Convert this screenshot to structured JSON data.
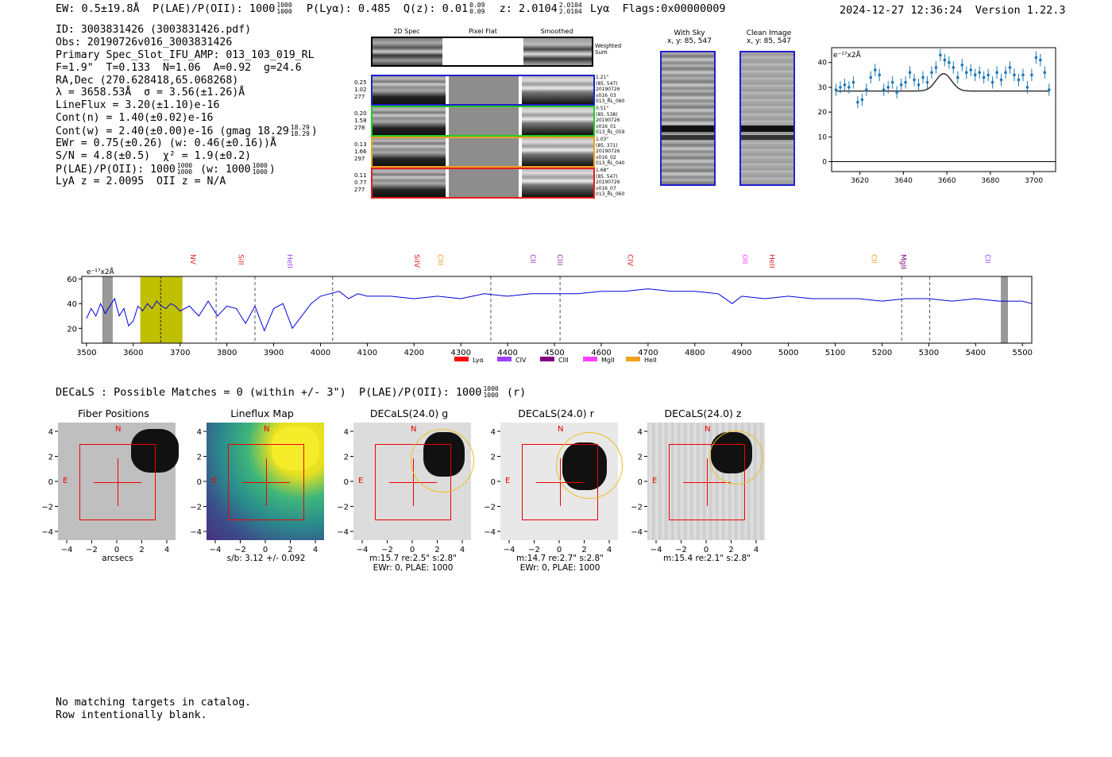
{
  "header": {
    "ew": "EW: 0.5±19.8Å",
    "plae_label": "P(LAE)/P(OII): 1000",
    "plae_sup": "1000",
    "plae_sub": "1000",
    "plya": "P(Lyα): 0.485",
    "q_label": "Q(z): 0.01",
    "q_sup": "0.09",
    "q_sub": "0.09",
    "z_label": "z: 2.0104",
    "z_sup": "2.0104",
    "z_sub": "2.0104",
    "z_line": "Lyα",
    "flags": "Flags:0x00000009",
    "datetime": "2024-12-27 12:36:24",
    "version": "Version 1.22.3"
  },
  "info": {
    "id": "ID: 3003831426 (3003831426.pdf)",
    "obs": "Obs: 20190726v016_3003831426",
    "primary": "Primary Spec_Slot_IFU_AMP: 013_103_019_RL",
    "fit": "F=1.9\"  T=0.133  N=1.06  A=0.92  g=24.6",
    "radec": "RA,Dec (270.628418,65.068268)",
    "lambda": "λ = 3658.53Å  σ = 3.56(±1.26)Å",
    "lineflux": "LineFlux = 3.20(±1.10)e-16",
    "contn": "Cont(n) = 1.40(±0.02)e-16",
    "contw": "Cont(w) = 2.40(±0.00)e-16 (gmag 18.29",
    "contw_sup": "18.29",
    "contw_sub": "18.29",
    "contw_end": ")",
    "ewr": "EWr = 0.75(±0.26) (w: 0.46(±0.16))Å",
    "sn": "S/N = 4.8(±0.5)  χ² = 1.9(±0.2)",
    "plae": "P(LAE)/P(OII): 1000",
    "plae_sup": "1000",
    "plae_sub": "1000",
    "plae_w": "(w: 1000",
    "plae_w_sup": "1000",
    "plae_w_sub": "1000",
    "plae_w_end": ")",
    "lyaz": "LyA z = 2.0095  OII z = N/A"
  },
  "stamps": {
    "col_titles": [
      "2D Spec",
      "Pixel Flat",
      "Smoothed"
    ],
    "weighted_sum": "Weighted\nSum",
    "rows": [
      {
        "color": "#1f1fd0",
        "left": [
          "0.25",
          "1.02",
          "277"
        ],
        "right": [
          "1.21\"",
          "(85, 547)",
          "20190726",
          "v016_03",
          "013_RL_060"
        ]
      },
      {
        "color": "#22cc22",
        "left": [
          "0.20",
          "1.58",
          "278"
        ],
        "right": [
          "0.51\"",
          "(85, 538)",
          "20190726",
          "v016_01",
          "013_RL_059"
        ]
      },
      {
        "color": "#f0a020",
        "left": [
          "0.13",
          "1.66",
          "297"
        ],
        "right": [
          "1.03\"",
          "(85, 371)",
          "20190726",
          "v016_02",
          "013_RL_040"
        ]
      },
      {
        "color": "#e02020",
        "left": [
          "0.11",
          "0.77",
          "277"
        ],
        "right": [
          "1.68\"",
          "(85, 547)",
          "20190726",
          "v016_07",
          "013_RL_060"
        ]
      }
    ]
  },
  "sky_panels": {
    "with_sky_title": "With Sky",
    "with_sky_coords": "x, y: 85, 547",
    "clean_title": "Clean Image",
    "clean_coords": "x, y: 85, 547"
  },
  "chart_data": [
    {
      "type": "scatter",
      "title": "",
      "units_label": "e⁻¹⁷x2Å",
      "xlabel": "",
      "ylabel": "",
      "xlim": [
        3607,
        3710
      ],
      "ylim": [
        -4,
        46
      ],
      "xticks": [
        3620,
        3640,
        3660,
        3680,
        3700
      ],
      "yticks": [
        0,
        10,
        20,
        30,
        40
      ],
      "points": [
        {
          "x": 3609,
          "y": 29,
          "err": 2.5
        },
        {
          "x": 3611,
          "y": 30,
          "err": 2.5
        },
        {
          "x": 3613,
          "y": 31,
          "err": 2.5
        },
        {
          "x": 3615,
          "y": 30,
          "err": 2.5
        },
        {
          "x": 3617,
          "y": 32,
          "err": 2.5
        },
        {
          "x": 3619,
          "y": 24,
          "err": 2.5
        },
        {
          "x": 3621,
          "y": 25,
          "err": 2.5
        },
        {
          "x": 3623,
          "y": 29,
          "err": 2.5
        },
        {
          "x": 3625,
          "y": 34,
          "err": 2.5
        },
        {
          "x": 3627,
          "y": 37,
          "err": 2.5
        },
        {
          "x": 3629,
          "y": 35,
          "err": 2.5
        },
        {
          "x": 3631,
          "y": 29,
          "err": 2.5
        },
        {
          "x": 3633,
          "y": 30,
          "err": 2.5
        },
        {
          "x": 3635,
          "y": 32,
          "err": 2.5
        },
        {
          "x": 3637,
          "y": 28,
          "err": 2.5
        },
        {
          "x": 3639,
          "y": 31,
          "err": 2.5
        },
        {
          "x": 3641,
          "y": 32,
          "err": 2.5
        },
        {
          "x": 3643,
          "y": 36,
          "err": 2.5
        },
        {
          "x": 3645,
          "y": 33,
          "err": 2.5
        },
        {
          "x": 3647,
          "y": 31,
          "err": 2.5
        },
        {
          "x": 3649,
          "y": 34,
          "err": 2.5
        },
        {
          "x": 3651,
          "y": 32,
          "err": 2.5
        },
        {
          "x": 3653,
          "y": 36,
          "err": 2.5
        },
        {
          "x": 3655,
          "y": 38,
          "err": 2.5
        },
        {
          "x": 3657,
          "y": 43,
          "err": 2.5
        },
        {
          "x": 3659,
          "y": 41,
          "err": 2.5
        },
        {
          "x": 3661,
          "y": 40,
          "err": 2.5
        },
        {
          "x": 3663,
          "y": 38,
          "err": 2.5
        },
        {
          "x": 3665,
          "y": 34,
          "err": 2.5
        },
        {
          "x": 3667,
          "y": 39,
          "err": 2.5
        },
        {
          "x": 3669,
          "y": 36,
          "err": 2.5
        },
        {
          "x": 3671,
          "y": 37,
          "err": 2.5
        },
        {
          "x": 3673,
          "y": 35,
          "err": 2.5
        },
        {
          "x": 3675,
          "y": 36,
          "err": 2.5
        },
        {
          "x": 3677,
          "y": 34,
          "err": 2.5
        },
        {
          "x": 3679,
          "y": 35,
          "err": 2.5
        },
        {
          "x": 3681,
          "y": 32,
          "err": 2.5
        },
        {
          "x": 3683,
          "y": 36,
          "err": 2.5
        },
        {
          "x": 3685,
          "y": 33,
          "err": 2.5
        },
        {
          "x": 3687,
          "y": 36,
          "err": 2.5
        },
        {
          "x": 3689,
          "y": 38,
          "err": 2.5
        },
        {
          "x": 3691,
          "y": 35,
          "err": 2.5
        },
        {
          "x": 3693,
          "y": 33,
          "err": 2.5
        },
        {
          "x": 3695,
          "y": 35,
          "err": 2.5
        },
        {
          "x": 3697,
          "y": 30,
          "err": 2.5
        },
        {
          "x": 3699,
          "y": 35,
          "err": 2.5
        },
        {
          "x": 3701,
          "y": 42,
          "err": 2.5
        },
        {
          "x": 3703,
          "y": 41,
          "err": 2.5
        },
        {
          "x": 3705,
          "y": 36,
          "err": 2.5
        },
        {
          "x": 3707,
          "y": 29,
          "err": 2.5
        }
      ],
      "model": {
        "continuum": 28.5,
        "amplitude": 7.0,
        "center": 3658.53,
        "sigma": 3.56
      }
    },
    {
      "type": "line",
      "title": "",
      "units_label": "e⁻¹⁷x2Å",
      "xlim": [
        3490,
        5520
      ],
      "ylim": [
        8,
        62
      ],
      "xticks": [
        3500,
        3600,
        3700,
        3800,
        3900,
        4000,
        4100,
        4200,
        4300,
        4400,
        4500,
        4600,
        4700,
        4800,
        4900,
        5000,
        5100,
        5200,
        5300,
        5400,
        5500
      ],
      "yticks": [
        20,
        40,
        60
      ],
      "highlight_band": [
        3615,
        3705
      ],
      "fit_line": 3658.53,
      "bad_regions": [
        [
          3535,
          3555
        ],
        [
          5455,
          5468
        ]
      ],
      "sky_lines": [
        3777,
        3860,
        4026,
        4364,
        4512,
        5242,
        5302
      ],
      "line_markers": [
        {
          "label": "NV",
          "x": 3728,
          "color": "#e02020"
        },
        {
          "label": "SiII",
          "x": 3830,
          "color": "#e02020"
        },
        {
          "label": "HeII",
          "x": 3935,
          "color": "#9a40ff"
        },
        {
          "label": "SiIV",
          "x": 4206,
          "color": "#e02020"
        },
        {
          "label": "CIII",
          "x": 4256,
          "color": "#f0a020"
        },
        {
          "label": "CII",
          "x": 4454,
          "color": "#9a30c0"
        },
        {
          "label": "CIII",
          "x": 4512,
          "color": "#9a30c0"
        },
        {
          "label": "CIV",
          "x": 4662,
          "color": "#e02020"
        },
        {
          "label": "OII",
          "x": 4907,
          "color": "#ff40ff"
        },
        {
          "label": "HeII",
          "x": 4965,
          "color": "#e02020"
        },
        {
          "label": "CII",
          "x": 5183,
          "color": "#f0a020"
        },
        {
          "label": "MgII",
          "x": 5246,
          "color": "#800080"
        },
        {
          "label": "CII",
          "x": 5426,
          "color": "#9a40ff"
        }
      ],
      "legend": [
        {
          "name": "Lyα",
          "color": "#ff0000"
        },
        {
          "name": "CIV",
          "color": "#9a40ff"
        },
        {
          "name": "CIII",
          "color": "#800080"
        },
        {
          "name": "MgII",
          "color": "#ff40ff"
        },
        {
          "name": "HeII",
          "color": "#f0a020"
        }
      ],
      "series": {
        "x": [
          3500,
          3510,
          3520,
          3530,
          3540,
          3550,
          3560,
          3570,
          3580,
          3590,
          3600,
          3610,
          3620,
          3630,
          3640,
          3650,
          3660,
          3670,
          3680,
          3690,
          3700,
          3720,
          3740,
          3760,
          3780,
          3800,
          3820,
          3840,
          3860,
          3880,
          3900,
          3920,
          3940,
          3960,
          3980,
          4000,
          4020,
          4040,
          4060,
          4080,
          4100,
          4150,
          4200,
          4250,
          4300,
          4350,
          4400,
          4450,
          4500,
          4550,
          4600,
          4650,
          4700,
          4750,
          4800,
          4850,
          4880,
          4900,
          4950,
          5000,
          5050,
          5100,
          5150,
          5200,
          5250,
          5300,
          5350,
          5400,
          5450,
          5500,
          5520
        ],
        "y": [
          28,
          36,
          30,
          40,
          32,
          38,
          44,
          30,
          36,
          22,
          26,
          38,
          34,
          40,
          36,
          42,
          38,
          36,
          40,
          38,
          34,
          38,
          30,
          42,
          30,
          38,
          36,
          24,
          38,
          18,
          36,
          40,
          20,
          30,
          40,
          46,
          48,
          50,
          44,
          48,
          46,
          46,
          44,
          46,
          44,
          48,
          46,
          48,
          48,
          48,
          50,
          50,
          52,
          50,
          50,
          48,
          40,
          46,
          44,
          46,
          44,
          44,
          44,
          42,
          44,
          44,
          42,
          44,
          42,
          42,
          40
        ]
      }
    }
  ],
  "decals": {
    "summary": "DECaLS : Possible Matches = 0 (within +/- 3\")  P(LAE)/P(OII): 1000",
    "summary_sup": "1000",
    "summary_sub": "1000",
    "summary_end": "(r)",
    "cutouts": [
      {
        "title": "Fiber Positions",
        "xlabel": "arcsecs",
        "foot1": "",
        "foot2": ""
      },
      {
        "title": "Lineflux Map",
        "xlabel": "",
        "foot1": "s/b: 3.12 +/- 0.092",
        "foot2": ""
      },
      {
        "title": "DECaLS(24.0) g",
        "xlabel": "",
        "foot1": "m:15.7  re:2.5\"  s:2.8\"",
        "foot2": "EWr: 0, PLAE: 1000"
      },
      {
        "title": "DECaLS(24.0) r",
        "xlabel": "",
        "foot1": "m:14.7  re:2.7\"  s:2.8\"",
        "foot2": "EWr: 0, PLAE: 1000"
      },
      {
        "title": "DECaLS(24.0) z",
        "xlabel": "",
        "foot1": "m:15.4  re:2.1\"  s:2.8\"",
        "foot2": ""
      }
    ],
    "axis_ticks": [
      "−4",
      "−2",
      "0",
      "2",
      "4"
    ],
    "compass_n": "N",
    "compass_e": "E"
  },
  "footer": {
    "line1": "No matching targets in catalog.",
    "line2": "Row intentionally blank."
  }
}
